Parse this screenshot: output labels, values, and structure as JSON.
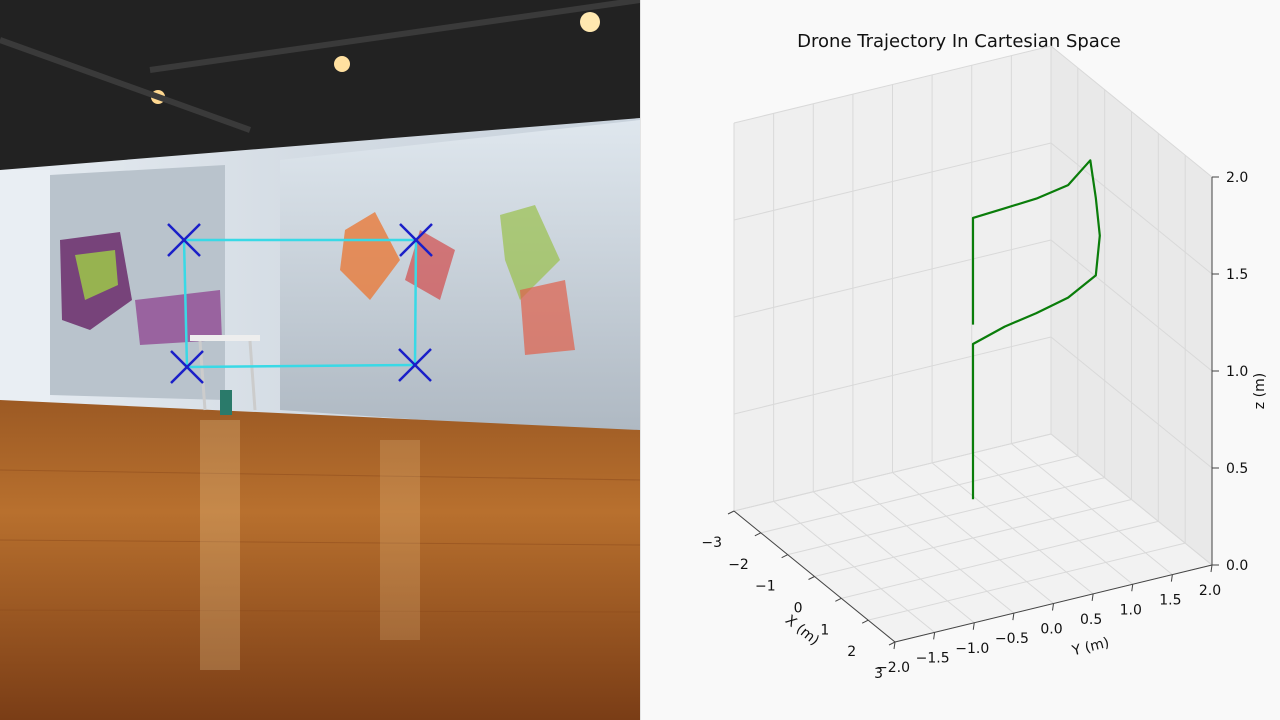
{
  "chart_data": {
    "type": "line",
    "title": "Drone Trajectory In Cartesian Space",
    "xlabel": "X (m)",
    "ylabel": "Y (m)",
    "zlabel": "z (m)",
    "x_ticks": [
      "−3",
      "−2",
      "−1",
      "0",
      "1",
      "2",
      "3"
    ],
    "y_ticks": [
      "−2.0",
      "−1.5",
      "−1.0",
      "−0.5",
      "0.0",
      "0.5",
      "1.0",
      "1.5",
      "2.0"
    ],
    "z_ticks": [
      "0.0",
      "0.5",
      "1.0",
      "1.5",
      "2.0"
    ],
    "xlim": [
      -3,
      3
    ],
    "ylim": [
      -2,
      2
    ],
    "zlim": [
      0,
      2
    ],
    "grid": true,
    "line_color": "#0a7d0a",
    "series": [
      {
        "points_xyz": [
          [
            0,
            0,
            0.2
          ],
          [
            0,
            0,
            0.5
          ],
          [
            0,
            0,
            0.8
          ],
          [
            0,
            0,
            1.0
          ],
          [
            0,
            0.4,
            1.05
          ],
          [
            0,
            0.8,
            1.08
          ],
          [
            0,
            1.2,
            1.12
          ],
          [
            0,
            1.55,
            1.2
          ],
          [
            0,
            1.6,
            1.4
          ],
          [
            0,
            1.55,
            1.6
          ],
          [
            0,
            1.48,
            1.8
          ],
          [
            0,
            1.2,
            1.7
          ],
          [
            0,
            0.8,
            1.67
          ],
          [
            0,
            0.4,
            1.66
          ],
          [
            0,
            0,
            1.65
          ],
          [
            0,
            0,
            1.4
          ],
          [
            0,
            0,
            1.1
          ]
        ]
      }
    ]
  },
  "overlay": {
    "marker_color": "#1a1fc8",
    "link_color": "#39d9e6",
    "markers": [
      {
        "name": "top-left"
      },
      {
        "name": "top-right"
      },
      {
        "name": "bottom-left"
      },
      {
        "name": "bottom-right"
      }
    ]
  }
}
